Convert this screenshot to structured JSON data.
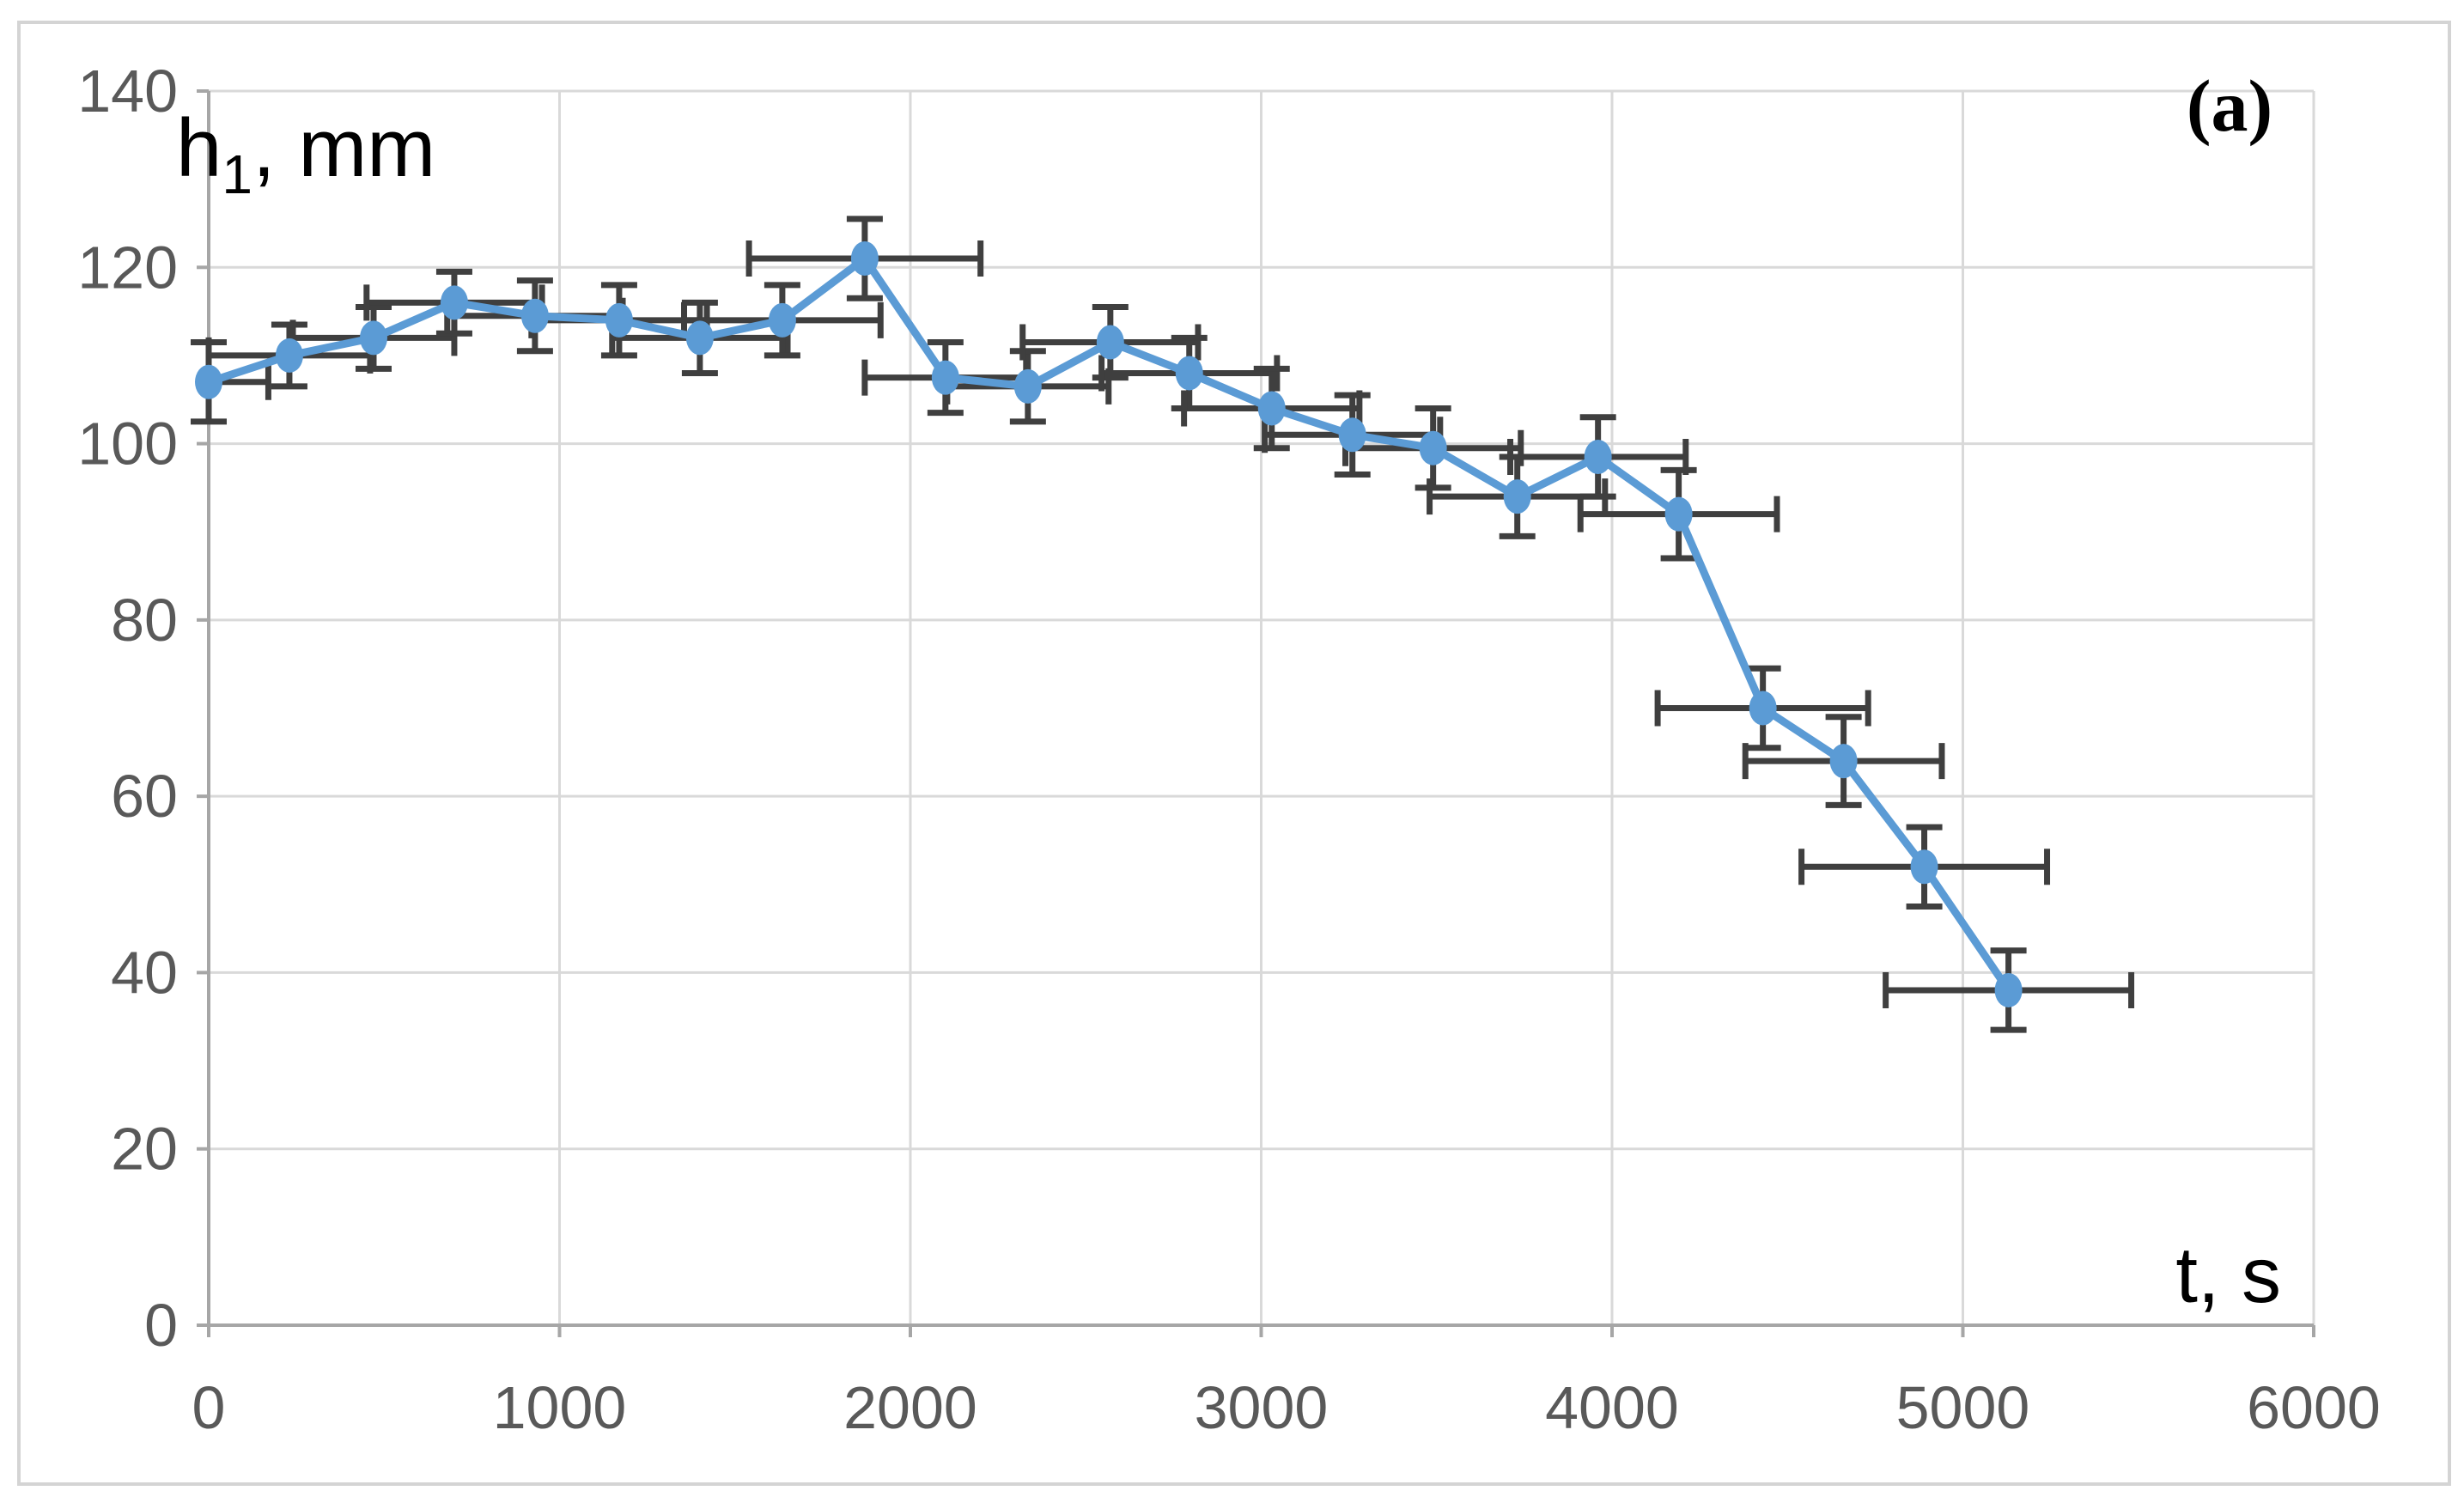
{
  "figure": {
    "panel_label": "(a)"
  },
  "chart_data": {
    "type": "line",
    "title": "",
    "xlabel": "t, s",
    "ylabel": "h₁, mm",
    "ylabel_main": "h",
    "ylabel_sub": "1",
    "ylabel_unit": ", mm",
    "xlim": [
      0,
      6000
    ],
    "ylim": [
      0,
      140
    ],
    "xticks": [
      0,
      1000,
      2000,
      3000,
      4000,
      5000,
      6000
    ],
    "yticks": [
      0,
      20,
      40,
      60,
      80,
      100,
      120,
      140
    ],
    "grid": true,
    "legend": "none",
    "series": [
      {
        "name": "h1",
        "marker": "circle",
        "color": "#5B9BD5",
        "error_bar_color": "#3F3F3F",
        "points": [
          {
            "t": 0,
            "h": 107,
            "et": 170,
            "eh": 4.5
          },
          {
            "t": 230,
            "h": 110,
            "et": 230,
            "eh": 3.5
          },
          {
            "t": 470,
            "h": 112,
            "et": 230,
            "eh": 3.5
          },
          {
            "t": 700,
            "h": 116,
            "et": 250,
            "eh": 3.5
          },
          {
            "t": 930,
            "h": 114.5,
            "et": 250,
            "eh": 4
          },
          {
            "t": 1170,
            "h": 114,
            "et": 250,
            "eh": 4
          },
          {
            "t": 1400,
            "h": 112,
            "et": 250,
            "eh": 4
          },
          {
            "t": 1635,
            "h": 114,
            "et": 280,
            "eh": 4
          },
          {
            "t": 1870,
            "h": 121,
            "et": 330,
            "eh": 4.5
          },
          {
            "t": 2100,
            "h": 107.5,
            "et": 230,
            "eh": 4
          },
          {
            "t": 2335,
            "h": 106.5,
            "et": 230,
            "eh": 4
          },
          {
            "t": 2570,
            "h": 111.5,
            "et": 250,
            "eh": 4
          },
          {
            "t": 2795,
            "h": 108,
            "et": 250,
            "eh": 4
          },
          {
            "t": 3030,
            "h": 104,
            "et": 250,
            "eh": 4.5
          },
          {
            "t": 3260,
            "h": 101,
            "et": 250,
            "eh": 4.5
          },
          {
            "t": 3490,
            "h": 99.5,
            "et": 250,
            "eh": 4.5
          },
          {
            "t": 3730,
            "h": 94,
            "et": 250,
            "eh": 4.5
          },
          {
            "t": 3960,
            "h": 98.5,
            "et": 250,
            "eh": 4.5
          },
          {
            "t": 4190,
            "h": 92,
            "et": 280,
            "eh": 5
          },
          {
            "t": 4430,
            "h": 70,
            "et": 300,
            "eh": 4.5
          },
          {
            "t": 4660,
            "h": 64,
            "et": 280,
            "eh": 5
          },
          {
            "t": 4890,
            "h": 52,
            "et": 350,
            "eh": 4.5
          },
          {
            "t": 5130,
            "h": 38,
            "et": 350,
            "eh": 4.5
          }
        ]
      }
    ]
  },
  "colors": {
    "series_blue": "#5B9BD5",
    "error_bar": "#3F3F3F",
    "gridline": "#D9D9D9",
    "axis_line": "#A6A6A6",
    "tick_label": "#595959",
    "axis_title": "#000000",
    "figure_border": "#D4D4D4",
    "background": "#FFFFFF"
  }
}
